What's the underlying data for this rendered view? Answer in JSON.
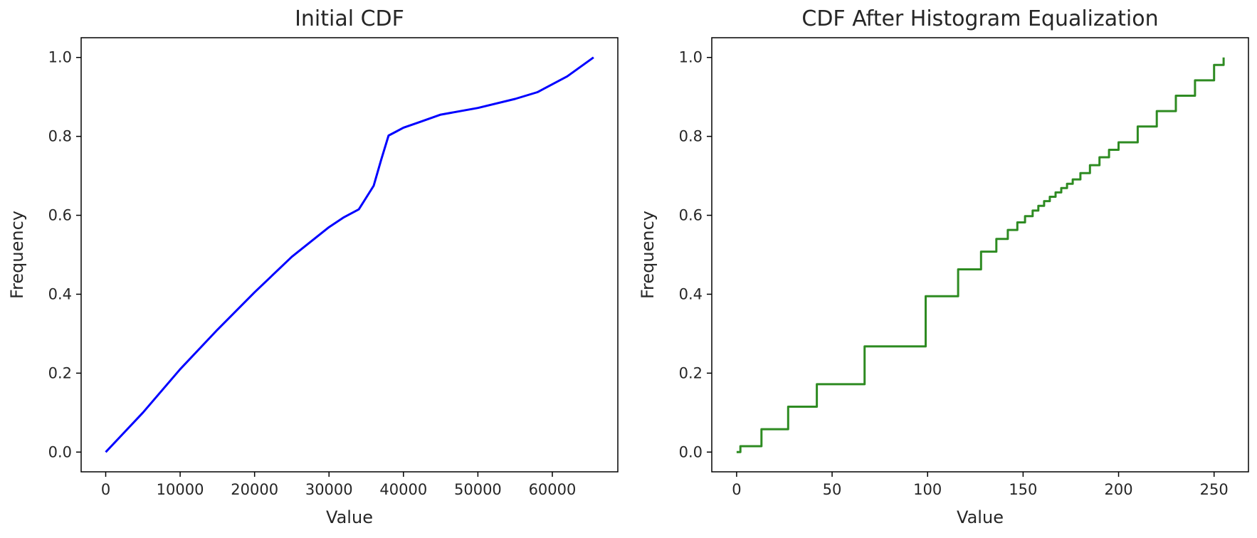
{
  "chart_data": [
    {
      "type": "line",
      "title": "Initial CDF",
      "xlabel": "Value",
      "ylabel": "Frequency",
      "xlim": [
        -3300,
        68800
      ],
      "ylim": [
        -0.05,
        1.05
      ],
      "xticks": [
        0,
        10000,
        20000,
        30000,
        40000,
        50000,
        60000
      ],
      "yticks": [
        0.0,
        0.2,
        0.4,
        0.6,
        0.8,
        1.0
      ],
      "xtick_labels": [
        "0",
        "10000",
        "20000",
        "30000",
        "40000",
        "50000",
        "60000"
      ],
      "ytick_labels": [
        "0.0",
        "0.2",
        "0.4",
        "0.6",
        "0.8",
        "1.0"
      ],
      "grid": false,
      "series": [
        {
          "color": "#0000ff",
          "x": [
            0,
            2000,
            5000,
            10000,
            15000,
            20000,
            25000,
            30000,
            32000,
            34000,
            36000,
            37000,
            38000,
            39000,
            40000,
            42000,
            45000,
            50000,
            55000,
            58000,
            62000,
            65535
          ],
          "y": [
            0.0,
            0.04,
            0.1,
            0.21,
            0.31,
            0.405,
            0.495,
            0.57,
            0.595,
            0.615,
            0.675,
            0.74,
            0.802,
            0.812,
            0.822,
            0.835,
            0.855,
            0.872,
            0.895,
            0.912,
            0.952,
            1.0
          ]
        }
      ]
    },
    {
      "type": "line",
      "title": "CDF After Histogram Equalization",
      "xlabel": "Value",
      "ylabel": "Frequency",
      "xlim": [
        -13,
        268
      ],
      "ylim": [
        -0.05,
        1.05
      ],
      "xticks": [
        0,
        50,
        100,
        150,
        200,
        250
      ],
      "yticks": [
        0.0,
        0.2,
        0.4,
        0.6,
        0.8,
        1.0
      ],
      "xtick_labels": [
        "0",
        "50",
        "100",
        "150",
        "200",
        "250"
      ],
      "ytick_labels": [
        "0.0",
        "0.2",
        "0.4",
        "0.6",
        "0.8",
        "1.0"
      ],
      "grid": false,
      "series": [
        {
          "color": "#2e8b22",
          "step": true,
          "x": [
            0,
            2,
            13,
            27,
            42,
            67,
            99,
            116,
            128,
            136,
            142,
            147,
            151,
            155,
            158,
            161,
            164,
            167,
            170,
            173,
            176,
            180,
            185,
            190,
            195,
            200,
            210,
            220,
            230,
            240,
            250,
            255
          ],
          "y": [
            0.0,
            0.015,
            0.058,
            0.115,
            0.172,
            0.268,
            0.395,
            0.463,
            0.508,
            0.54,
            0.563,
            0.582,
            0.598,
            0.612,
            0.624,
            0.636,
            0.647,
            0.658,
            0.669,
            0.68,
            0.691,
            0.707,
            0.727,
            0.747,
            0.766,
            0.785,
            0.825,
            0.864,
            0.903,
            0.942,
            0.981,
            1.0
          ]
        }
      ]
    }
  ]
}
